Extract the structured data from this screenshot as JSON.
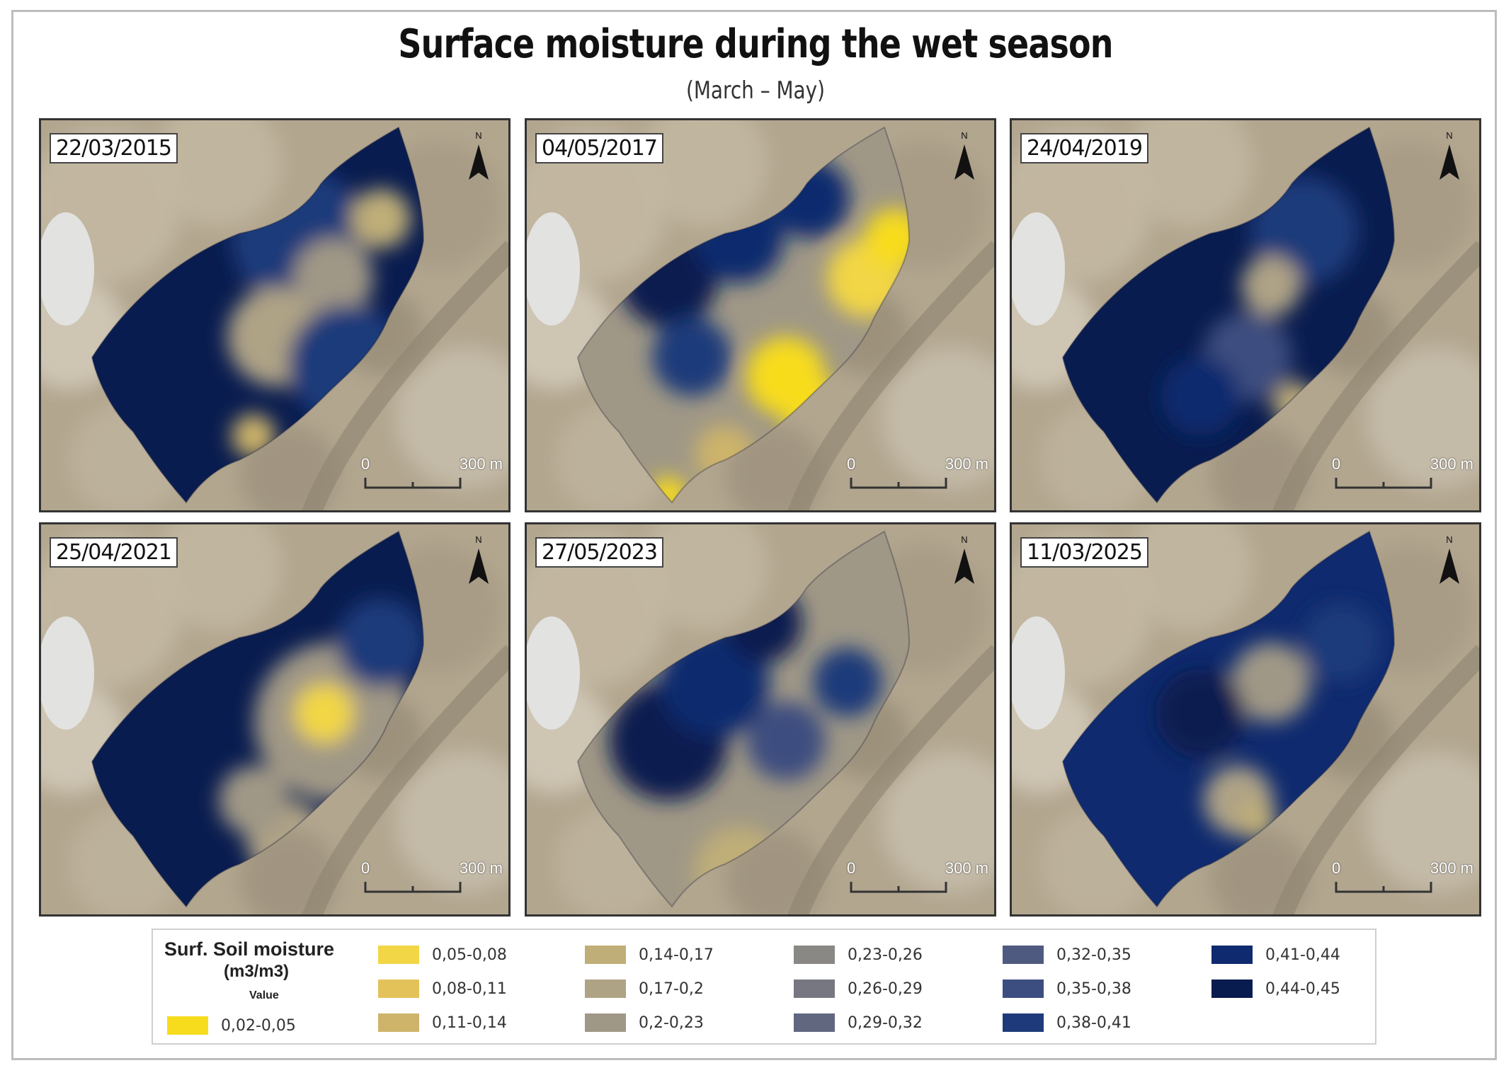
{
  "title": "Surface moisture during the wet season",
  "subtitle": "(March – May)",
  "panels": [
    {
      "date": "22/03/2015",
      "north": "N",
      "scale": {
        "start": "0",
        "end": "300 m"
      }
    },
    {
      "date": "04/05/2017",
      "north": "N",
      "scale": {
        "start": "0",
        "end": "300 m"
      }
    },
    {
      "date": "24/04/2019",
      "north": "N",
      "scale": {
        "start": "0",
        "end": "300 m"
      }
    },
    {
      "date": "25/04/2021",
      "north": "N",
      "scale": {
        "start": "0",
        "end": "300 m"
      }
    },
    {
      "date": "27/05/2023",
      "north": "N",
      "scale": {
        "start": "0",
        "end": "300 m"
      }
    },
    {
      "date": "11/03/2025",
      "north": "N",
      "scale": {
        "start": "0",
        "end": "300 m"
      }
    }
  ],
  "legend": {
    "title": "Surf. Soil moisture",
    "unit": "(m3/m3)",
    "value_label": "Value",
    "classes": [
      {
        "label": "0,02-0,05",
        "color": "#f7dc1e"
      },
      {
        "label": "0,05-0,08",
        "color": "#f2d645"
      },
      {
        "label": "0,08-0,11",
        "color": "#e3c25a"
      },
      {
        "label": "0,11-0,14",
        "color": "#cdb46a"
      },
      {
        "label": "0,14-0,17",
        "color": "#bfae78"
      },
      {
        "label": "0,17-0,2",
        "color": "#afa386"
      },
      {
        "label": "0,2-0,23",
        "color": "#a09886"
      },
      {
        "label": "0,23-0,26",
        "color": "#8a8884"
      },
      {
        "label": "0,26-0,29",
        "color": "#777781"
      },
      {
        "label": "0,29-0,32",
        "color": "#626780"
      },
      {
        "label": "0,32-0,35",
        "color": "#4f5a80"
      },
      {
        "label": "0,35-0,38",
        "color": "#3c4d7f"
      },
      {
        "label": "0,38-0,41",
        "color": "#1e3a7a"
      },
      {
        "label": "0,41-0,44",
        "color": "#0f2a6e"
      },
      {
        "label": "0,44-0,45",
        "color": "#091c4f"
      }
    ]
  }
}
